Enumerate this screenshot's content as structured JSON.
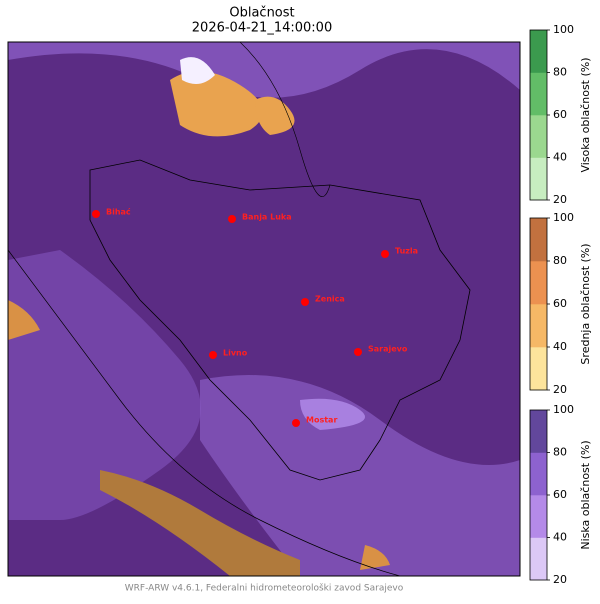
{
  "header": {
    "title": "Oblačnost",
    "subtitle": "2026-04-21_14:00:00"
  },
  "map": {
    "cities": [
      "Bihać",
      "Banja Luka",
      "Tuzla",
      "Zenica",
      "Livno",
      "Sarajevo",
      "Mostar"
    ]
  },
  "colorbars": [
    {
      "label": "Visoka oblačnost (%)",
      "lim": [
        20,
        100
      ],
      "ticks": [
        20,
        40,
        60,
        80,
        100
      ],
      "colors": [
        "#c7edc0",
        "#9bd88f",
        "#62bd67",
        "#3b9a4e"
      ]
    },
    {
      "label": "Srednja oblačnost (%)",
      "lim": [
        20,
        100
      ],
      "ticks": [
        20,
        40,
        60,
        80,
        100
      ],
      "colors": [
        "#fde49c",
        "#f6b866",
        "#ec9150",
        "#c2713f"
      ]
    },
    {
      "label": "Niska oblačnost (%)",
      "lim": [
        20,
        100
      ],
      "ticks": [
        20,
        40,
        60,
        80,
        100
      ],
      "colors": [
        "#dcc8f6",
        "#b48ae8",
        "#8d62cf",
        "#62479c"
      ]
    }
  ],
  "footer": "WRF-ARW v4.6.1, Federalni hidrometeorološki zavod Sarajevo"
}
